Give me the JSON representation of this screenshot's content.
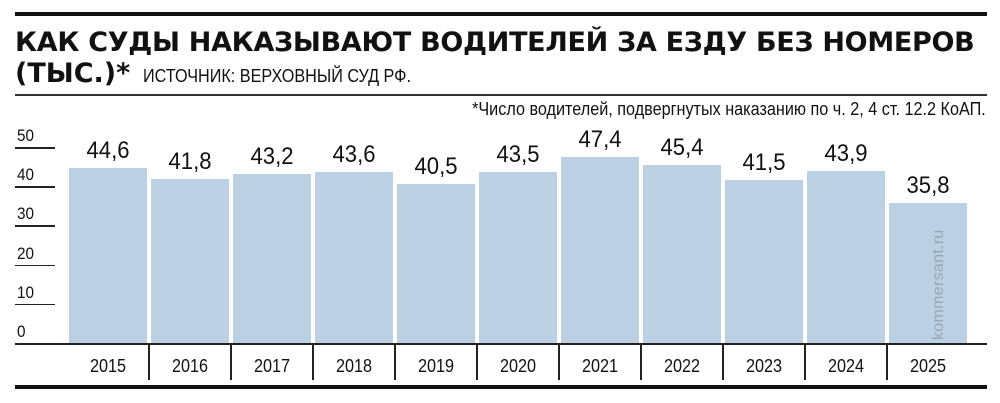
{
  "header": {
    "title_line1": "КАК СУДЫ НАКАЗЫВАЮТ ВОДИТЕЛЕЙ ЗА ЕЗДУ БЕЗ НОМЕРОВ",
    "title_line2": "(ТЫС.)*",
    "source": "ИСТОЧНИК: ВЕРХОВНЫЙ СУД РФ.",
    "footnote": "*Число водителей, подвергнутых наказанию по ч. 2, 4 ст. 12.2 КоАП."
  },
  "watermark": "kommersant.ru",
  "colors": {
    "bar": "#bbd0e3",
    "rule": "#111111",
    "text": "#111111"
  },
  "axis": {
    "y_ticks": [
      "50",
      "40",
      "30",
      "20",
      "10",
      "0"
    ]
  },
  "chart_data": {
    "type": "bar",
    "title": "Как суды наказывают водителей за езду без номеров (тыс.)*",
    "subtitle": "Источник: Верховный суд РФ.",
    "annotation": "*Число водителей, подвергнутых наказанию по ч. 2, 4 ст. 12.2 КоАП.",
    "categories": [
      "2015",
      "2016",
      "2017",
      "2018",
      "2019",
      "2020",
      "2021",
      "2022",
      "2023",
      "2024",
      "2025"
    ],
    "values": [
      44.6,
      41.8,
      43.2,
      43.6,
      40.5,
      43.5,
      47.4,
      45.4,
      41.5,
      43.9,
      35.8
    ],
    "value_labels": [
      "44,6",
      "41,8",
      "43,2",
      "43,6",
      "40,5",
      "43,5",
      "47,4",
      "45,4",
      "41,5",
      "43,9",
      "35,8"
    ],
    "xlabel": "",
    "ylabel": "тыс.",
    "ylim": [
      0,
      50
    ],
    "yticks": [
      0,
      10,
      20,
      30,
      40,
      50
    ],
    "grid": false,
    "legend": null
  }
}
